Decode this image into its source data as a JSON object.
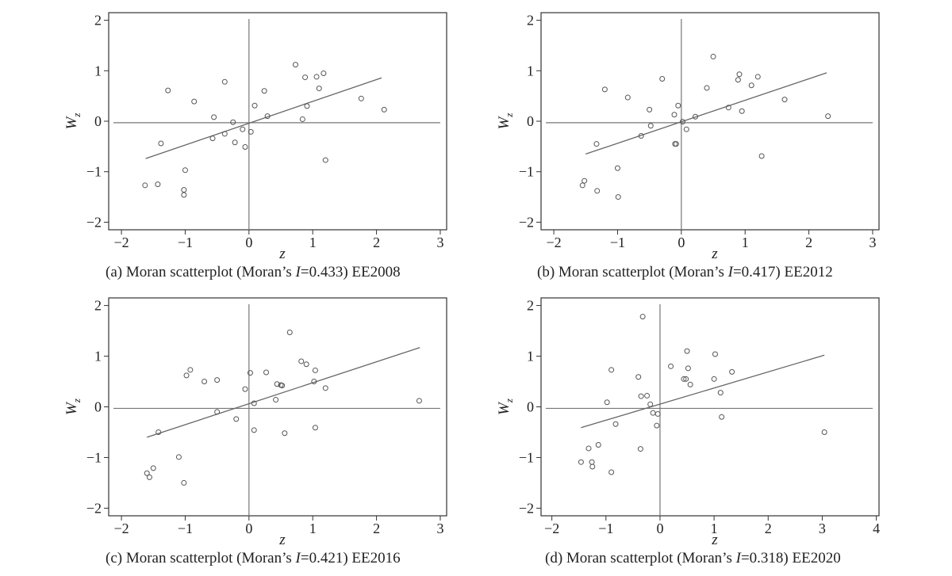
{
  "chart_data": [
    {
      "type": "scatter",
      "caption": {
        "prefix": "(a) Moran scatterplot (Moran’s ",
        "stat_symbol": "I",
        "stat_value": "=0.433) EE2008"
      },
      "xlabel": "z",
      "ylabel_base": "W",
      "ylabel_sub": "z",
      "xlim": [
        -2.2,
        3.1
      ],
      "ylim": [
        -2.15,
        2.15
      ],
      "xticks": [
        -2,
        -1,
        0,
        1,
        2,
        3
      ],
      "yticks": [
        -2,
        -1,
        0,
        1,
        2
      ],
      "trend_line": {
        "x": [
          -1.62,
          2.08
        ],
        "y": [
          -0.74,
          0.86
        ]
      },
      "points": [
        [
          -1.63,
          -1.27
        ],
        [
          -1.43,
          -1.25
        ],
        [
          -1.38,
          -0.44
        ],
        [
          -1.27,
          0.61
        ],
        [
          -1.02,
          -1.36
        ],
        [
          -1.02,
          -1.46
        ],
        [
          -1.0,
          -0.97
        ],
        [
          -0.86,
          0.39
        ],
        [
          -0.57,
          -0.34
        ],
        [
          -0.55,
          0.08
        ],
        [
          -0.38,
          0.78
        ],
        [
          -0.38,
          -0.25
        ],
        [
          -0.25,
          -0.02
        ],
        [
          -0.22,
          -0.42
        ],
        [
          -0.1,
          -0.16
        ],
        [
          -0.06,
          -0.51
        ],
        [
          0.03,
          -0.21
        ],
        [
          0.09,
          0.31
        ],
        [
          0.24,
          0.6
        ],
        [
          0.29,
          0.1
        ],
        [
          0.73,
          1.12
        ],
        [
          0.84,
          0.04
        ],
        [
          0.88,
          0.87
        ],
        [
          0.91,
          0.3
        ],
        [
          1.06,
          0.88
        ],
        [
          1.1,
          0.65
        ],
        [
          1.17,
          0.95
        ],
        [
          1.2,
          -0.77
        ],
        [
          1.76,
          0.45
        ],
        [
          2.12,
          0.23
        ]
      ]
    },
    {
      "type": "scatter",
      "caption": {
        "prefix": "(b) Moran scatterplot (Moran’s ",
        "stat_symbol": "I",
        "stat_value": "=0.417) EE2012"
      },
      "xlabel": "z",
      "ylabel_base": "W",
      "ylabel_sub": "z",
      "xlim": [
        -2.2,
        3.1
      ],
      "ylim": [
        -2.15,
        2.15
      ],
      "xticks": [
        -2,
        -1,
        0,
        1,
        2,
        3
      ],
      "yticks": [
        -2,
        -1,
        0,
        1,
        2
      ],
      "trend_line": {
        "x": [
          -1.5,
          2.28
        ],
        "y": [
          -0.65,
          0.96
        ]
      },
      "points": [
        [
          -1.55,
          -1.27
        ],
        [
          -1.52,
          -1.18
        ],
        [
          -1.33,
          -0.45
        ],
        [
          -1.32,
          -1.38
        ],
        [
          -1.2,
          0.63
        ],
        [
          -1.0,
          -0.93
        ],
        [
          -0.99,
          -1.5
        ],
        [
          -0.84,
          0.47
        ],
        [
          -0.63,
          -0.29
        ],
        [
          -0.5,
          0.23
        ],
        [
          -0.48,
          -0.09
        ],
        [
          -0.3,
          0.84
        ],
        [
          -0.11,
          0.13
        ],
        [
          -0.1,
          -0.45
        ],
        [
          -0.08,
          -0.45
        ],
        [
          -0.05,
          0.31
        ],
        [
          0.02,
          -0.01
        ],
        [
          0.08,
          -0.16
        ],
        [
          0.22,
          0.09
        ],
        [
          0.4,
          0.66
        ],
        [
          0.5,
          1.28
        ],
        [
          0.74,
          0.27
        ],
        [
          0.89,
          0.82
        ],
        [
          0.91,
          0.93
        ],
        [
          0.95,
          0.2
        ],
        [
          1.1,
          0.71
        ],
        [
          1.2,
          0.88
        ],
        [
          1.26,
          -0.69
        ],
        [
          1.62,
          0.43
        ],
        [
          2.3,
          0.1
        ]
      ]
    },
    {
      "type": "scatter",
      "caption": {
        "prefix": "(c) Moran scatterplot (Moran’s ",
        "stat_symbol": "I",
        "stat_value": "=0.421) EE2016"
      },
      "xlabel": "z",
      "ylabel_base": "W",
      "ylabel_sub": "z",
      "xlim": [
        -2.2,
        3.1
      ],
      "ylim": [
        -2.15,
        2.15
      ],
      "xticks": [
        -2,
        -1,
        0,
        1,
        2,
        3
      ],
      "yticks": [
        -2,
        -1,
        0,
        1,
        2
      ],
      "trend_line": {
        "x": [
          -1.6,
          2.68
        ],
        "y": [
          -0.6,
          1.17
        ]
      },
      "points": [
        [
          -1.6,
          -1.31
        ],
        [
          -1.56,
          -1.39
        ],
        [
          -1.5,
          -1.21
        ],
        [
          -1.42,
          -0.5
        ],
        [
          -1.1,
          -0.99
        ],
        [
          -1.02,
          -1.5
        ],
        [
          -0.98,
          0.62
        ],
        [
          -0.92,
          0.73
        ],
        [
          -0.7,
          0.5
        ],
        [
          -0.5,
          0.53
        ],
        [
          -0.5,
          -0.1
        ],
        [
          -0.2,
          -0.24
        ],
        [
          -0.06,
          0.35
        ],
        [
          0.02,
          0.67
        ],
        [
          0.08,
          0.07
        ],
        [
          0.08,
          -0.46
        ],
        [
          0.27,
          0.68
        ],
        [
          0.42,
          0.14
        ],
        [
          0.44,
          0.45
        ],
        [
          0.5,
          0.43
        ],
        [
          0.52,
          0.42
        ],
        [
          0.56,
          -0.52
        ],
        [
          0.64,
          1.47
        ],
        [
          0.82,
          0.9
        ],
        [
          0.9,
          0.84
        ],
        [
          1.02,
          0.5
        ],
        [
          1.04,
          -0.41
        ],
        [
          1.04,
          0.72
        ],
        [
          1.2,
          0.37
        ],
        [
          2.67,
          0.12
        ]
      ]
    },
    {
      "type": "scatter",
      "caption": {
        "prefix": "(d) Moran scatterplot (Moran’s ",
        "stat_symbol": "I",
        "stat_value": "=0.318) EE2020"
      },
      "xlabel": "z",
      "ylabel_base": "W",
      "ylabel_sub": "z",
      "xlim": [
        -2.2,
        4.05
      ],
      "ylim": [
        -2.15,
        2.15
      ],
      "xticks": [
        -2,
        -1,
        0,
        1,
        2,
        3,
        4
      ],
      "yticks": [
        -2,
        -1,
        0,
        1,
        2
      ],
      "trend_line": {
        "x": [
          -1.46,
          3.04
        ],
        "y": [
          -0.41,
          1.02
        ]
      },
      "points": [
        [
          -1.46,
          -1.09
        ],
        [
          -1.32,
          -0.82
        ],
        [
          -1.26,
          -1.09
        ],
        [
          -1.25,
          -1.18
        ],
        [
          -1.14,
          -0.75
        ],
        [
          -0.98,
          0.09
        ],
        [
          -0.9,
          -1.29
        ],
        [
          -0.9,
          0.73
        ],
        [
          -0.82,
          -0.34
        ],
        [
          -0.4,
          0.59
        ],
        [
          -0.36,
          -0.83
        ],
        [
          -0.35,
          0.21
        ],
        [
          -0.32,
          1.78
        ],
        [
          -0.24,
          0.22
        ],
        [
          -0.18,
          0.05
        ],
        [
          -0.13,
          -0.12
        ],
        [
          -0.06,
          -0.37
        ],
        [
          -0.04,
          -0.14
        ],
        [
          0.2,
          0.8
        ],
        [
          0.44,
          0.55
        ],
        [
          0.48,
          0.55
        ],
        [
          0.5,
          1.1
        ],
        [
          0.52,
          0.76
        ],
        [
          0.56,
          0.44
        ],
        [
          1.0,
          0.55
        ],
        [
          1.02,
          1.04
        ],
        [
          1.12,
          0.28
        ],
        [
          1.14,
          -0.2
        ],
        [
          1.33,
          0.69
        ],
        [
          3.04,
          -0.5
        ]
      ]
    }
  ]
}
